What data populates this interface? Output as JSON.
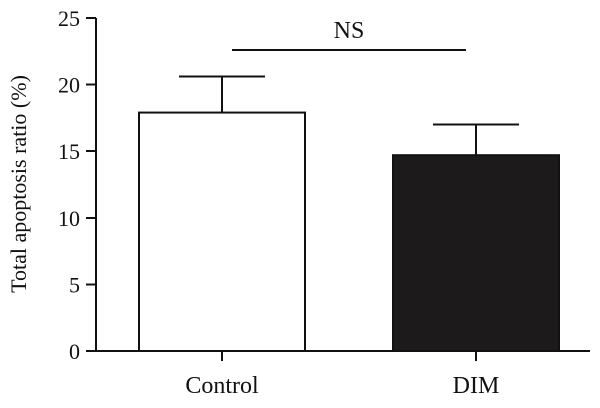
{
  "chart_data": {
    "type": "bar",
    "title": "",
    "xlabel": "",
    "ylabel": "Total apoptosis ratio (%)",
    "ylim": [
      0,
      25
    ],
    "yticks": [
      "0",
      "5",
      "10",
      "15",
      "20",
      "25"
    ],
    "categories": [
      "Control",
      "DIM"
    ],
    "values": [
      17.9,
      14.7
    ],
    "errors": [
      2.7,
      2.3
    ],
    "colors": [
      "#ffffff",
      "#1c1a1a"
    ],
    "annotations": [
      {
        "text": "NS",
        "spans": [
          "Control",
          "DIM"
        ]
      }
    ],
    "grid": false,
    "legend": "none"
  }
}
